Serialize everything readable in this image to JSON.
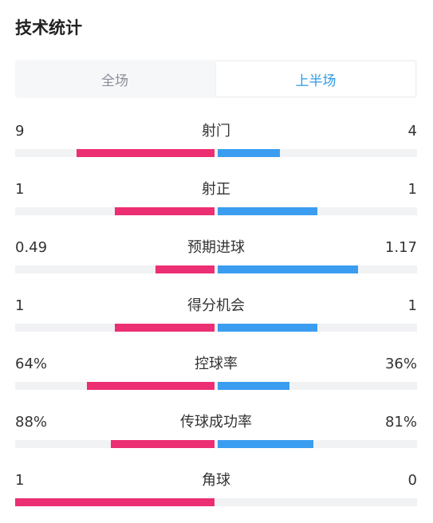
{
  "header": {
    "title": "技术统计"
  },
  "tabs": [
    {
      "label": "全场",
      "active": false
    },
    {
      "label": "上半场",
      "active": true
    }
  ],
  "colors": {
    "home": "#ec2e72",
    "away": "#3a9df0",
    "active_tab": "#2e9ae6"
  },
  "stats": [
    {
      "label": "射门",
      "home_display": "9",
      "away_display": "4",
      "home_value": 9,
      "away_value": 4,
      "home_fraction": 0.69,
      "away_fraction": 0.31
    },
    {
      "label": "射正",
      "home_display": "1",
      "away_display": "1",
      "home_value": 1,
      "away_value": 1,
      "home_fraction": 0.5,
      "away_fraction": 0.5
    },
    {
      "label": "预期进球",
      "home_display": "0.49",
      "away_display": "1.17",
      "home_value": 0.49,
      "away_value": 1.17,
      "home_fraction": 0.295,
      "away_fraction": 0.705
    },
    {
      "label": "得分机会",
      "home_display": "1",
      "away_display": "1",
      "home_value": 1,
      "away_value": 1,
      "home_fraction": 0.5,
      "away_fraction": 0.5
    },
    {
      "label": "控球率",
      "home_display": "64%",
      "away_display": "36%",
      "home_value": 64,
      "away_value": 36,
      "home_fraction": 0.64,
      "away_fraction": 0.36
    },
    {
      "label": "传球成功率",
      "home_display": "88%",
      "away_display": "81%",
      "home_value": 88,
      "away_value": 81,
      "home_fraction": 0.52,
      "away_fraction": 0.48
    },
    {
      "label": "角球",
      "home_display": "1",
      "away_display": "0",
      "home_value": 1,
      "away_value": 0,
      "home_fraction": 1.0,
      "away_fraction": 0.0
    }
  ]
}
